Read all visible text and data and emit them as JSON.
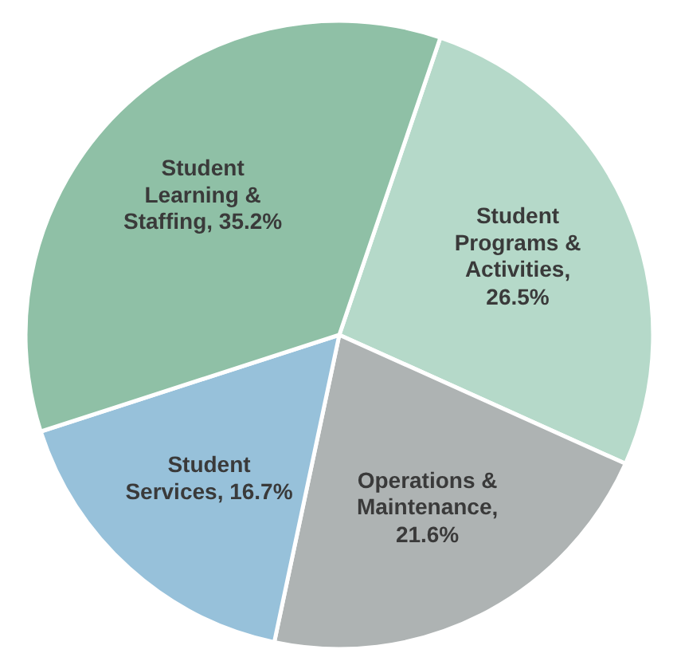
{
  "chart_data": {
    "type": "pie",
    "categories": [
      "Student Programs & Activities",
      "Operations & Maintenance",
      "Student Services",
      "Student Learning & Staffing"
    ],
    "values": [
      26.5,
      21.6,
      16.7,
      35.2
    ],
    "value_labels": [
      ", 26.5%",
      ", 21.6%",
      ", 16.7%",
      ", 35.2%"
    ],
    "colors": [
      "#b5d9c9",
      "#aeb3b3",
      "#97c1da",
      "#8fc0a6"
    ]
  }
}
